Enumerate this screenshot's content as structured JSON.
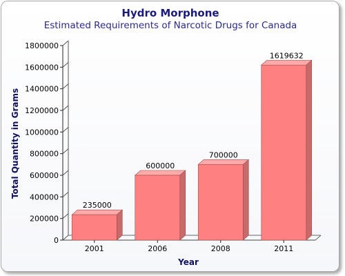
{
  "chart_data": {
    "type": "bar",
    "title": "Hydro Morphone",
    "subtitle": "Estimated Requirements of Narcotic Drugs for Canada",
    "xlabel": "Year",
    "ylabel": "Total Quantity in Grams",
    "categories": [
      "2001",
      "2006",
      "2008",
      "2011"
    ],
    "values": [
      235000,
      600000,
      700000,
      1619632
    ],
    "data_labels": [
      "235000",
      "600000",
      "700000",
      "1619632"
    ],
    "ylim": [
      0,
      1800000
    ],
    "yticks": [
      0,
      200000,
      400000,
      600000,
      800000,
      1000000,
      1200000,
      1400000,
      1600000,
      1800000
    ],
    "ytick_labels": [
      "0",
      "200000",
      "400000",
      "600000",
      "800000",
      "1000000",
      "1200000",
      "1400000",
      "1600000",
      "1800000"
    ],
    "grid": false,
    "legend": "none",
    "colors": {
      "bar_front": "#ff8080",
      "bar_side": "#c86a6a",
      "bar_top": "#ffaaaa",
      "title": "#1a1a7a"
    }
  }
}
